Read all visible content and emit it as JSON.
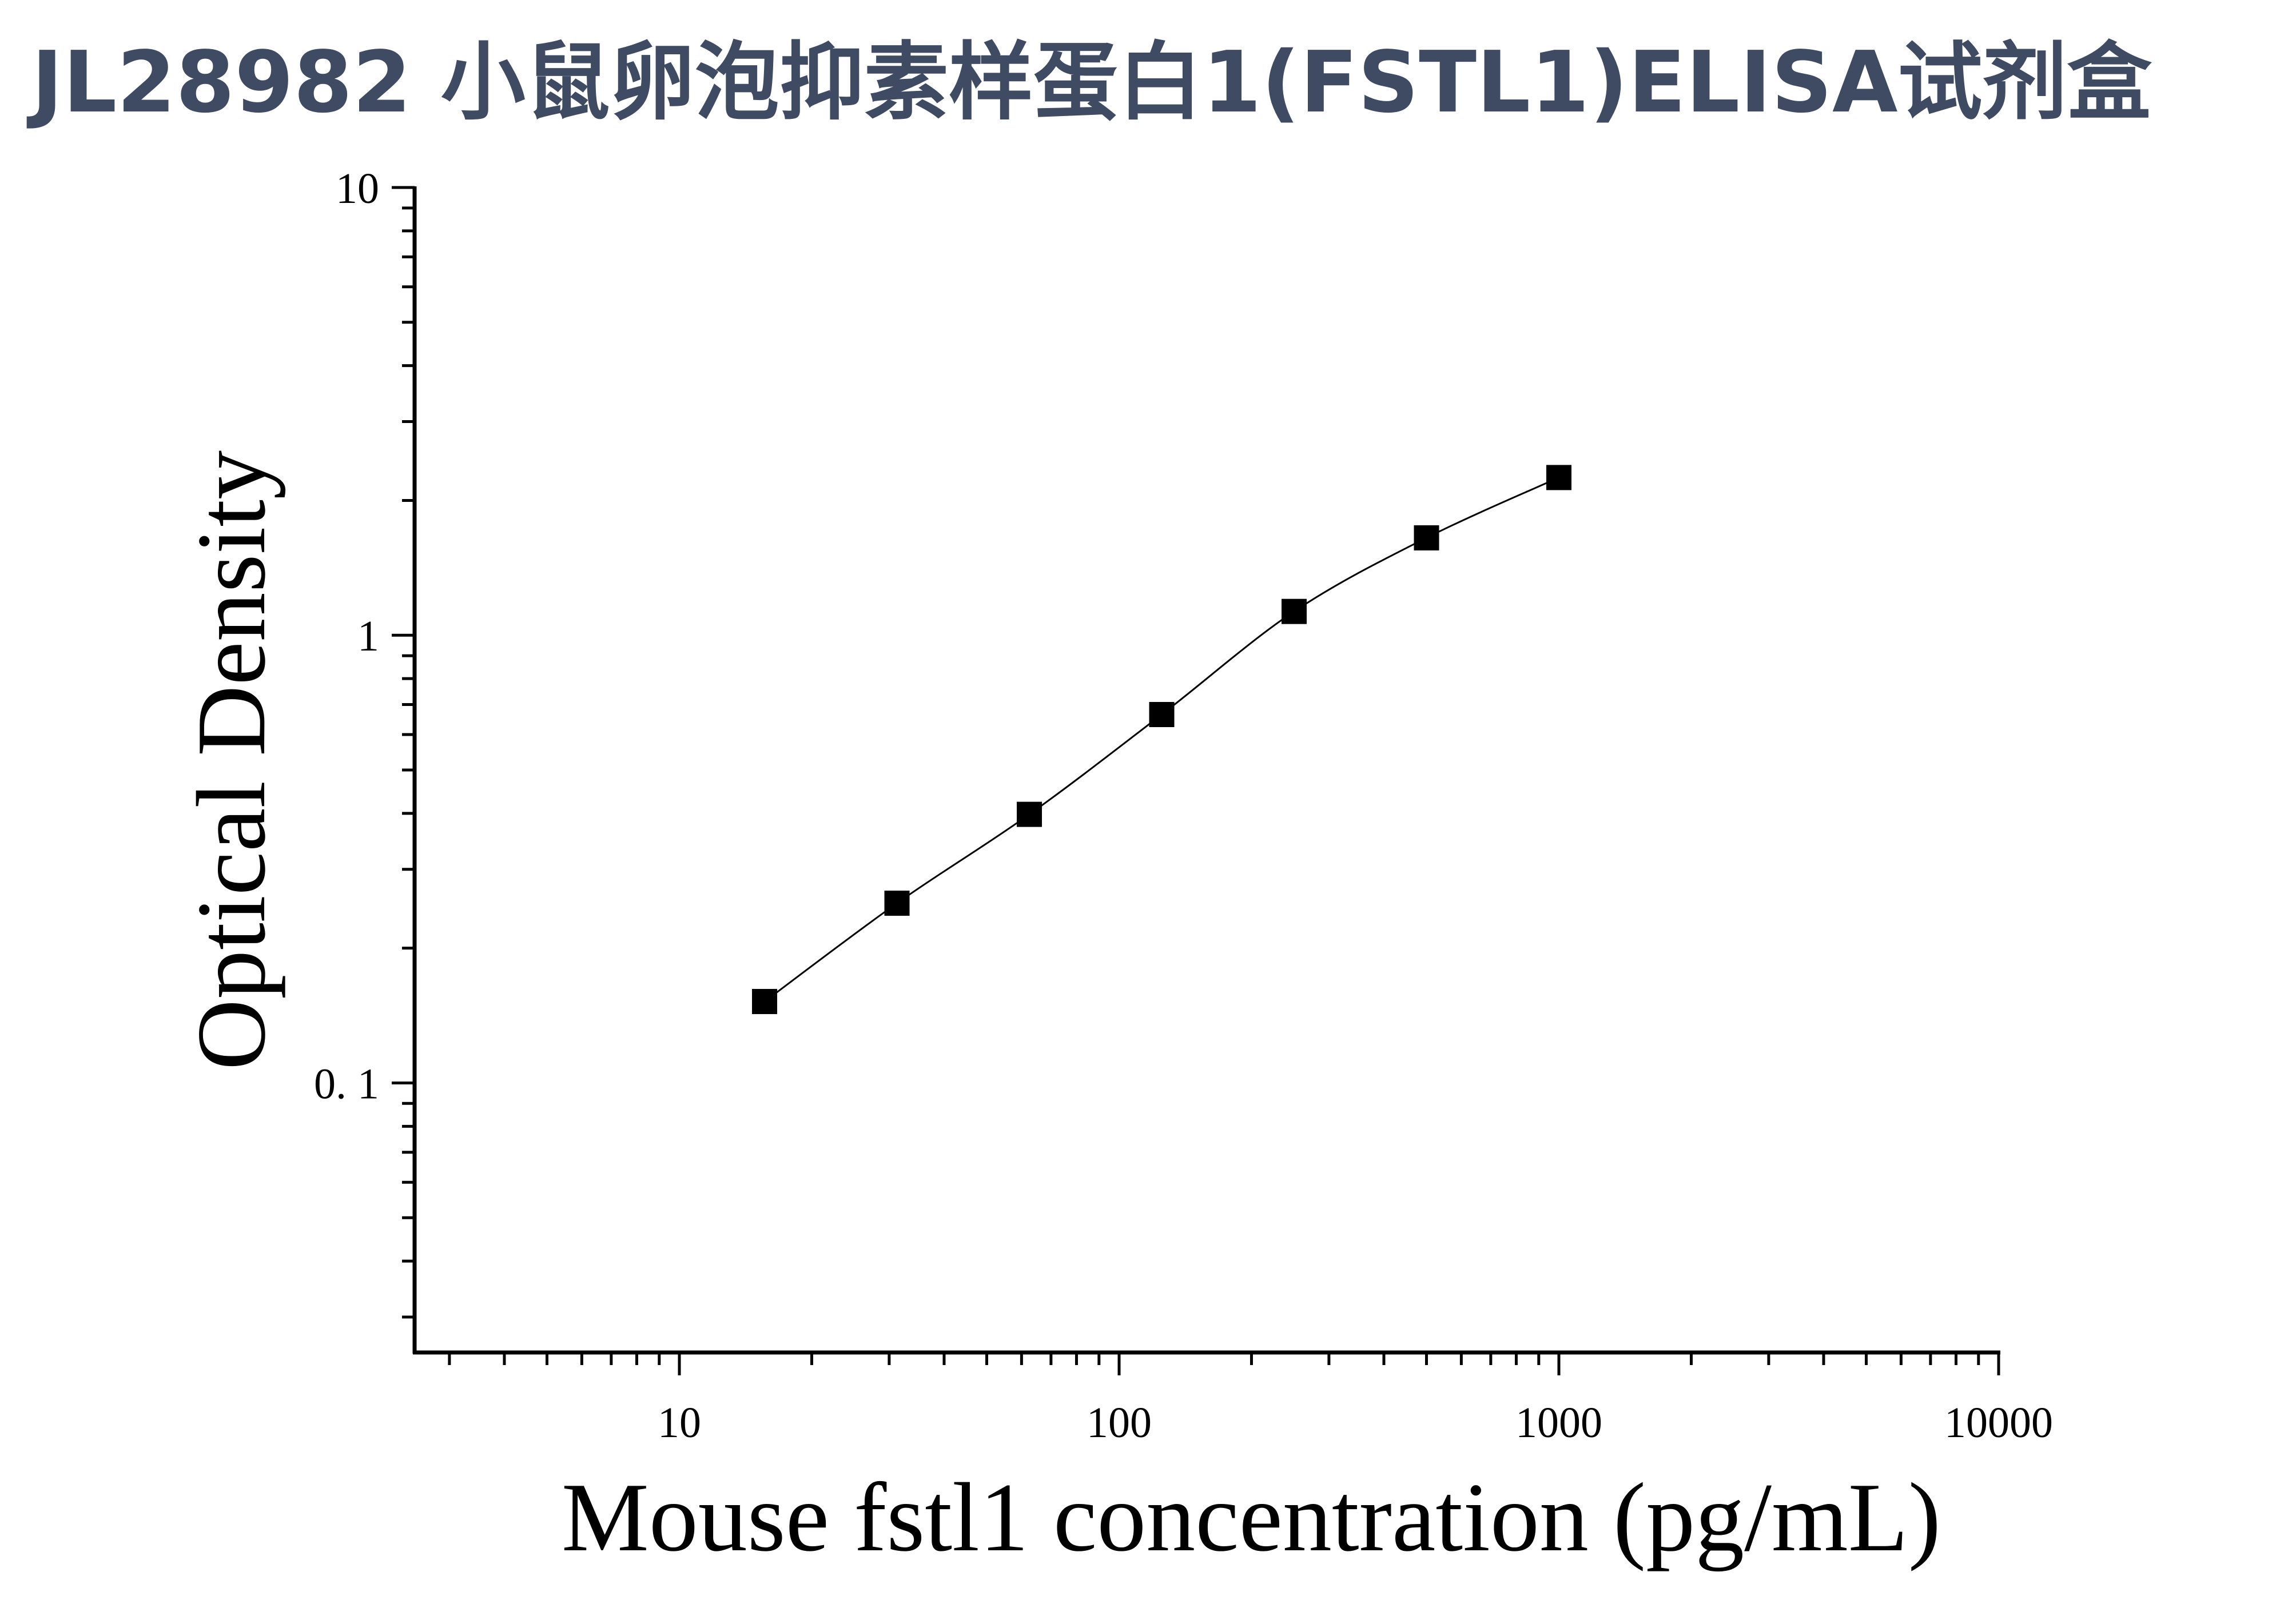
{
  "header": {
    "title": "JL28982 小鼠卵泡抑素样蛋白1(FSTL1)ELISA试剂盒",
    "title_color": "#3f4a63"
  },
  "chart_data": {
    "type": "scatter",
    "title": "JL28982 小鼠卵泡抑素样蛋白1(FSTL1)ELISA试剂盒",
    "xlabel": "Mouse fstl1 concentration (pg/mL)",
    "ylabel": "Optical Density",
    "x_scale": "log",
    "y_scale": "log",
    "xlim": [
      2.5,
      10000
    ],
    "ylim": [
      0.025,
      10
    ],
    "x_ticks": [
      {
        "value": 10,
        "label": "10"
      },
      {
        "value": 100,
        "label": "100"
      },
      {
        "value": 1000,
        "label": "1000"
      },
      {
        "value": 10000,
        "label": "10000"
      }
    ],
    "y_ticks": [
      {
        "value": 0.1,
        "label": "0. 1"
      },
      {
        "value": 1,
        "label": "1"
      },
      {
        "value": 10,
        "label": "10"
      }
    ],
    "grid": false,
    "legend": "none",
    "marker": "square",
    "marker_color": "#000000",
    "line_color": "#000000",
    "series": [
      {
        "x": [
          15.625,
          31.25,
          62.5,
          125,
          250,
          500,
          1000
        ],
        "y": [
          0.152,
          0.252,
          0.398,
          0.665,
          1.13,
          1.65,
          2.25
        ],
        "fit_curve": true
      }
    ]
  }
}
